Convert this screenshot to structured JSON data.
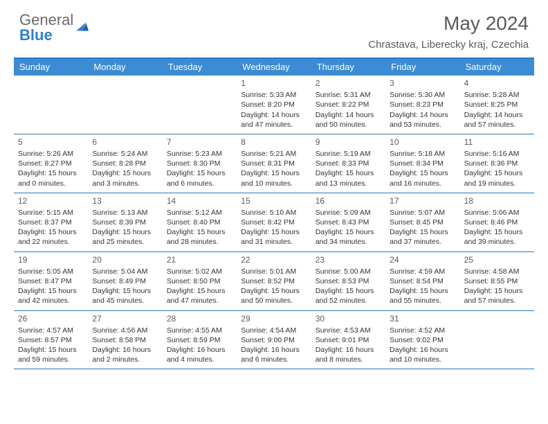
{
  "brand": {
    "part1": "General",
    "part2": "Blue",
    "icon_color": "#2f7fcf"
  },
  "title": "May 2024",
  "location": "Chrastava, Liberecky kraj, Czechia",
  "colors": {
    "header_bg": "#3b8cd4",
    "header_border": "#2879c0",
    "text": "#333333",
    "muted": "#5a5a5a",
    "white": "#ffffff"
  },
  "dayNames": [
    "Sunday",
    "Monday",
    "Tuesday",
    "Wednesday",
    "Thursday",
    "Friday",
    "Saturday"
  ],
  "labels": {
    "sunrise": "Sunrise:",
    "sunset": "Sunset:",
    "daylight": "Daylight:"
  },
  "weeks": [
    [
      null,
      null,
      null,
      {
        "n": "1",
        "sr": "5:33 AM",
        "ss": "8:20 PM",
        "dl": "14 hours and 47 minutes."
      },
      {
        "n": "2",
        "sr": "5:31 AM",
        "ss": "8:22 PM",
        "dl": "14 hours and 50 minutes."
      },
      {
        "n": "3",
        "sr": "5:30 AM",
        "ss": "8:23 PM",
        "dl": "14 hours and 53 minutes."
      },
      {
        "n": "4",
        "sr": "5:28 AM",
        "ss": "8:25 PM",
        "dl": "14 hours and 57 minutes."
      }
    ],
    [
      {
        "n": "5",
        "sr": "5:26 AM",
        "ss": "8:27 PM",
        "dl": "15 hours and 0 minutes."
      },
      {
        "n": "6",
        "sr": "5:24 AM",
        "ss": "8:28 PM",
        "dl": "15 hours and 3 minutes."
      },
      {
        "n": "7",
        "sr": "5:23 AM",
        "ss": "8:30 PM",
        "dl": "15 hours and 6 minutes."
      },
      {
        "n": "8",
        "sr": "5:21 AM",
        "ss": "8:31 PM",
        "dl": "15 hours and 10 minutes."
      },
      {
        "n": "9",
        "sr": "5:19 AM",
        "ss": "8:33 PM",
        "dl": "15 hours and 13 minutes."
      },
      {
        "n": "10",
        "sr": "5:18 AM",
        "ss": "8:34 PM",
        "dl": "15 hours and 16 minutes."
      },
      {
        "n": "11",
        "sr": "5:16 AM",
        "ss": "8:36 PM",
        "dl": "15 hours and 19 minutes."
      }
    ],
    [
      {
        "n": "12",
        "sr": "5:15 AM",
        "ss": "8:37 PM",
        "dl": "15 hours and 22 minutes."
      },
      {
        "n": "13",
        "sr": "5:13 AM",
        "ss": "8:39 PM",
        "dl": "15 hours and 25 minutes."
      },
      {
        "n": "14",
        "sr": "5:12 AM",
        "ss": "8:40 PM",
        "dl": "15 hours and 28 minutes."
      },
      {
        "n": "15",
        "sr": "5:10 AM",
        "ss": "8:42 PM",
        "dl": "15 hours and 31 minutes."
      },
      {
        "n": "16",
        "sr": "5:09 AM",
        "ss": "8:43 PM",
        "dl": "15 hours and 34 minutes."
      },
      {
        "n": "17",
        "sr": "5:07 AM",
        "ss": "8:45 PM",
        "dl": "15 hours and 37 minutes."
      },
      {
        "n": "18",
        "sr": "5:06 AM",
        "ss": "8:46 PM",
        "dl": "15 hours and 39 minutes."
      }
    ],
    [
      {
        "n": "19",
        "sr": "5:05 AM",
        "ss": "8:47 PM",
        "dl": "15 hours and 42 minutes."
      },
      {
        "n": "20",
        "sr": "5:04 AM",
        "ss": "8:49 PM",
        "dl": "15 hours and 45 minutes."
      },
      {
        "n": "21",
        "sr": "5:02 AM",
        "ss": "8:50 PM",
        "dl": "15 hours and 47 minutes."
      },
      {
        "n": "22",
        "sr": "5:01 AM",
        "ss": "8:52 PM",
        "dl": "15 hours and 50 minutes."
      },
      {
        "n": "23",
        "sr": "5:00 AM",
        "ss": "8:53 PM",
        "dl": "15 hours and 52 minutes."
      },
      {
        "n": "24",
        "sr": "4:59 AM",
        "ss": "8:54 PM",
        "dl": "15 hours and 55 minutes."
      },
      {
        "n": "25",
        "sr": "4:58 AM",
        "ss": "8:55 PM",
        "dl": "15 hours and 57 minutes."
      }
    ],
    [
      {
        "n": "26",
        "sr": "4:57 AM",
        "ss": "8:57 PM",
        "dl": "15 hours and 59 minutes."
      },
      {
        "n": "27",
        "sr": "4:56 AM",
        "ss": "8:58 PM",
        "dl": "16 hours and 2 minutes."
      },
      {
        "n": "28",
        "sr": "4:55 AM",
        "ss": "8:59 PM",
        "dl": "16 hours and 4 minutes."
      },
      {
        "n": "29",
        "sr": "4:54 AM",
        "ss": "9:00 PM",
        "dl": "16 hours and 6 minutes."
      },
      {
        "n": "30",
        "sr": "4:53 AM",
        "ss": "9:01 PM",
        "dl": "16 hours and 8 minutes."
      },
      {
        "n": "31",
        "sr": "4:52 AM",
        "ss": "9:02 PM",
        "dl": "16 hours and 10 minutes."
      },
      null
    ]
  ]
}
